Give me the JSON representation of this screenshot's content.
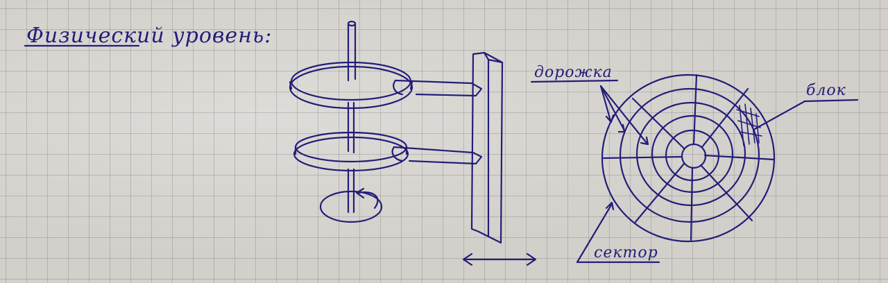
{
  "title": "Физический уровень:",
  "labels": {
    "track": "дорожка",
    "block": "блок",
    "sector": "сектор"
  }
}
